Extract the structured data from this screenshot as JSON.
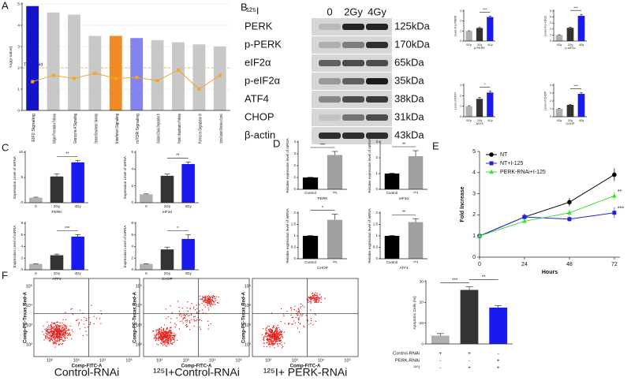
{
  "panels": [
    "A",
    "B",
    "C",
    "D",
    "E",
    "F"
  ],
  "blot": {
    "isotope": "¹²⁵I",
    "lanes": [
      "0",
      "2Gy",
      "4Gy"
    ],
    "rows": [
      {
        "protein": "PERK",
        "size": "125kDa"
      },
      {
        "protein": "p-PERK",
        "size": "170kDa"
      },
      {
        "protein": "eIF2α",
        "size": "65kDa"
      },
      {
        "protein": "p-eIF2α",
        "size": "35kDa"
      },
      {
        "protein": "ATF4",
        "size": "38kDa"
      },
      {
        "protein": "CHOP",
        "size": "31kDa"
      },
      {
        "protein": "β-actin",
        "size": "43kDa"
      }
    ]
  },
  "flow": {
    "y_label": "Comp-PE-Texas Red-A",
    "x_label": "Comp-FITC-A",
    "ticks": [
      "10²",
      "10³",
      "10⁴",
      "10⁵"
    ],
    "captions": [
      "Control-RNAi",
      "¹²⁵I+Control-RNAi",
      "¹²⁵I+ PERK-RNAi"
    ]
  },
  "chart_data": [
    {
      "type": "bar",
      "ylabel": "-log(p-value)",
      "threshold": 2,
      "threshold_label": "Threshold",
      "grid": true,
      "categories": [
        "EIF2 Signaling",
        "Antigen Presentation Pathway",
        "Granzyme A Signaling",
        "Stearate Biosynthesis I (Animals)",
        "Interferon Signaling",
        "mTOR Signaling",
        "Oxidative Ethanol Degradation III",
        "Protein Ubiquitination Pathway",
        "Putrescine Degradation III",
        "Tryptophan Degradation X (Mammalian, via Tryptamine)"
      ],
      "values": [
        4.9,
        4.6,
        4.5,
        3.5,
        3.5,
        3.4,
        3.3,
        3.2,
        3.1,
        3.0
      ],
      "colors": [
        "#1414c8",
        "#c8c8c8",
        "#c8c8c8",
        "#c8c8c8",
        "#f08a24",
        "#8484ee",
        "#c8c8c8",
        "#c8c8c8",
        "#c8c8c8",
        "#c8c8c8"
      ],
      "ylim": [
        0,
        5
      ],
      "yticks": [
        0,
        1,
        2,
        3,
        4,
        5
      ],
      "ratio": {
        "axis": "y2",
        "color": "#f5a623",
        "values": [
          0.27,
          0.33,
          0.3,
          0.35,
          0.3,
          0.31,
          0.28,
          0.38,
          0.2,
          0.33
        ]
      },
      "y2lim": [
        0,
        1
      ]
    },
    {
      "type": "bar",
      "xlabel": "p-PERK",
      "ylabel": "Level of p-PERK",
      "categories": [
        "0Gy",
        "2Gy",
        "4Gy"
      ],
      "values": [
        1,
        1.3,
        2.4
      ],
      "errors": [
        0.03,
        0.06,
        0.08
      ],
      "colors": [
        "#b0b0b0",
        "#333333",
        "#1a1aee"
      ],
      "ylim": [
        0,
        3
      ],
      "yticks": [
        0,
        1,
        2,
        3
      ],
      "significance": [
        "***"
      ]
    },
    {
      "type": "bar",
      "xlabel": "p-eIF2α",
      "ylabel": "Level of p-eIF2α",
      "categories": [
        "0Gy",
        "2Gy",
        "4Gy"
      ],
      "values": [
        1,
        2.2,
        4.2
      ],
      "errors": [
        0.05,
        0.1,
        0.25
      ],
      "colors": [
        "#b0b0b0",
        "#333333",
        "#1a1aee"
      ],
      "ylim": [
        0,
        5
      ],
      "yticks": [
        0,
        1,
        2,
        3,
        4,
        5
      ],
      "significance": [
        "***"
      ]
    },
    {
      "type": "bar",
      "xlabel": "ATF4",
      "ylabel": "Level of ATF4",
      "categories": [
        "0Gy",
        "2Gy",
        "4Gy"
      ],
      "values": [
        1,
        1.7,
        2.3
      ],
      "errors": [
        0.05,
        0.15,
        0.15
      ],
      "colors": [
        "#b0b0b0",
        "#333333",
        "#1a1aee"
      ],
      "ylim": [
        0,
        3
      ],
      "yticks": [
        0,
        1,
        2,
        3
      ],
      "significance": [
        "*"
      ]
    },
    {
      "type": "bar",
      "xlabel": "CHOP",
      "ylabel": "Level of CHOP",
      "categories": [
        "0Gy",
        "2Gy",
        "4Gy"
      ],
      "values": [
        1,
        1.5,
        2.9
      ],
      "errors": [
        0.05,
        0.08,
        0.15
      ],
      "colors": [
        "#b0b0b0",
        "#333333",
        "#1a1aee"
      ],
      "ylim": [
        0,
        4
      ],
      "yticks": [
        0,
        1,
        2,
        3,
        4
      ],
      "significance": [
        "***"
      ]
    },
    {
      "type": "bar",
      "xlabel": "PERK",
      "ylabel": "Expression Level of mRNA",
      "categories": [
        "0",
        "2Gy",
        "4Gy"
      ],
      "values": [
        1,
        5.2,
        8
      ],
      "errors": [
        0.1,
        0.5,
        0.4
      ],
      "colors": [
        "#b0b0b0",
        "#333333",
        "#1a1aee"
      ],
      "ylim": [
        0,
        10
      ],
      "yticks": [
        0,
        5,
        10
      ],
      "significance": [
        "**"
      ]
    },
    {
      "type": "bar",
      "xlabel": "eIF2α",
      "ylabel": "Expression Level of mRNA",
      "categories": [
        "0",
        "2Gy",
        "4Gy"
      ],
      "values": [
        1,
        3.2,
        4.6
      ],
      "errors": [
        0.05,
        0.2,
        0.25
      ],
      "colors": [
        "#b0b0b0",
        "#333333",
        "#1a1aee"
      ],
      "ylim": [
        0,
        6
      ],
      "yticks": [
        0,
        2,
        4,
        6
      ],
      "significance": [
        "**"
      ]
    },
    {
      "type": "bar",
      "xlabel": "ATF4",
      "ylabel": "Expression Level of mRNA",
      "categories": [
        "0",
        "2Gy",
        "4Gy"
      ],
      "values": [
        1,
        2.5,
        5.7
      ],
      "errors": [
        0.05,
        0.2,
        0.35
      ],
      "colors": [
        "#b0b0b0",
        "#333333",
        "#1a1aee"
      ],
      "ylim": [
        0,
        8
      ],
      "yticks": [
        0,
        2,
        4,
        6,
        8
      ],
      "significance": [
        "***"
      ]
    },
    {
      "type": "bar",
      "xlabel": "CHOP",
      "ylabel": "Expression Level of mRNA",
      "categories": [
        "0",
        "2Gy",
        "4Gy"
      ],
      "values": [
        1,
        3.5,
        5.3
      ],
      "errors": [
        0.05,
        0.4,
        0.7
      ],
      "colors": [
        "#b0b0b0",
        "#333333",
        "#1a1aee"
      ],
      "ylim": [
        0,
        8
      ],
      "yticks": [
        0,
        2,
        4,
        6,
        8
      ],
      "significance": [
        "*"
      ]
    },
    {
      "type": "bar",
      "xlabel": "PERK",
      "ylabel": "Relative expression level of mRNA",
      "categories": [
        "Control",
        "¹²⁵I"
      ],
      "values": [
        1,
        2.9
      ],
      "errors": [
        0.02,
        0.3
      ],
      "colors": [
        "#000000",
        "#a0a0a0"
      ],
      "ylim": [
        0,
        4
      ],
      "yticks": [
        0,
        1,
        2,
        3,
        4
      ],
      "significance": [
        "***"
      ]
    },
    {
      "type": "bar",
      "xlabel": "eIF2α",
      "ylabel": "Relative expression level of mRNA",
      "categories": [
        "Control",
        "¹²⁵I"
      ],
      "values": [
        1,
        2.1
      ],
      "errors": [
        0.02,
        0.35
      ],
      "colors": [
        "#000000",
        "#a0a0a0"
      ],
      "ylim": [
        0,
        3
      ],
      "yticks": [
        0,
        1,
        2,
        3
      ],
      "significance": [
        "**"
      ]
    },
    {
      "type": "bar",
      "xlabel": "CHOP",
      "ylabel": "Relative expression level of mRNA",
      "categories": [
        "Control",
        "¹²⁵I"
      ],
      "values": [
        1,
        1.7
      ],
      "errors": [
        0.02,
        0.25
      ],
      "colors": [
        "#000000",
        "#a0a0a0"
      ],
      "ylim": [
        0,
        2
      ],
      "yticks": [
        0,
        0.5,
        1,
        1.5,
        2
      ],
      "significance": [
        "*"
      ]
    },
    {
      "type": "bar",
      "xlabel": "ATF4",
      "ylabel": "Relative expression level of mRNA",
      "categories": [
        "Control",
        "¹²⁵I"
      ],
      "values": [
        1,
        1.6
      ],
      "errors": [
        0.02,
        0.15
      ],
      "colors": [
        "#000000",
        "#a0a0a0"
      ],
      "ylim": [
        0,
        2
      ],
      "yticks": [
        0,
        0.5,
        1,
        1.5,
        2
      ],
      "significance": [
        "**"
      ]
    },
    {
      "type": "line",
      "xlabel": "Hours",
      "ylabel": "Fold Increase",
      "x": [
        0,
        24,
        48,
        72
      ],
      "xlim": [
        0,
        75
      ],
      "xticks": [
        0,
        24,
        48,
        72
      ],
      "ylim": [
        0,
        5
      ],
      "yticks": [
        0,
        1,
        2,
        3,
        4,
        5
      ],
      "legend": "upper left",
      "series": [
        {
          "name": "NT",
          "color": "#000000",
          "marker": "circle",
          "values": [
            1,
            1.9,
            2.6,
            3.9
          ],
          "errors": [
            0.05,
            0.15,
            0.2,
            0.3
          ]
        },
        {
          "name": "NT+I-125",
          "color": "#2323d8",
          "marker": "square",
          "values": [
            1,
            1.9,
            1.8,
            2.1
          ],
          "errors": [
            0.05,
            0.15,
            0.12,
            0.25
          ],
          "annotation": "***"
        },
        {
          "name": "PERK-RNAi+I-125",
          "color": "#3ee03e",
          "marker": "triangle",
          "values": [
            1,
            1.7,
            2.1,
            2.9
          ],
          "errors": [
            0.05,
            0.1,
            0.15,
            0.2
          ],
          "annotation": "**"
        }
      ]
    },
    {
      "type": "bar",
      "ylabel": "Apoptotic Cells (%)",
      "categories": [
        null,
        null,
        null
      ],
      "values": [
        4,
        26,
        17.5
      ],
      "errors": [
        1,
        1.5,
        1
      ],
      "colors": [
        "#b0b0b0",
        "#333333",
        "#1a1aee"
      ],
      "ylim": [
        0,
        30
      ],
      "yticks": [
        0,
        10,
        20,
        30
      ],
      "significance": [
        "***",
        "**"
      ],
      "table": [
        [
          "Control-RNAi",
          "+",
          "+",
          "-"
        ],
        [
          "PERK-RNAi",
          "-",
          "-",
          "+"
        ],
        [
          "¹²⁵I",
          "-",
          "+",
          "+"
        ]
      ]
    }
  ]
}
